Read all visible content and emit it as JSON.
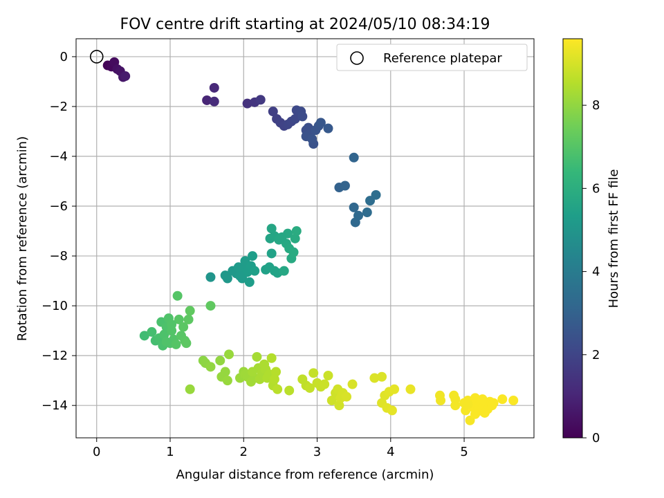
{
  "chart_data": {
    "type": "scatter",
    "title": "FOV centre drift starting at 2024/05/10 08:34:19",
    "xlabel": "Angular distance from reference (arcmin)",
    "ylabel": "Rotation from reference (arcmin)",
    "xlim": [
      -0.28,
      5.95
    ],
    "ylim": [
      -15.3,
      0.72
    ],
    "x_ticks": [
      0,
      1,
      2,
      3,
      4,
      5
    ],
    "y_ticks": [
      0,
      -2,
      -4,
      -6,
      -8,
      -10,
      -12,
      -14
    ],
    "grid": true,
    "legend": {
      "entries": [
        "Reference platepar"
      ],
      "position": "top-right"
    },
    "reference_point": {
      "x": 0,
      "y": 0,
      "label": "Reference platepar"
    },
    "colorbar": {
      "label": "Hours from first FF file",
      "range": [
        0,
        9.6
      ],
      "ticks": [
        0,
        2,
        4,
        6,
        8
      ],
      "colormap": [
        "#440154",
        "#482878",
        "#3e4989",
        "#31688e",
        "#26828e",
        "#1f9e89",
        "#35b779",
        "#6ece58",
        "#b5de2b",
        "#fde725"
      ]
    },
    "series": [
      {
        "points": [
          [
            0.15,
            -0.35,
            0.1
          ],
          [
            0.2,
            -0.4,
            0.2
          ],
          [
            0.24,
            -0.22,
            0.3
          ],
          [
            0.28,
            -0.5,
            0.4
          ],
          [
            0.32,
            -0.58,
            0.5
          ],
          [
            0.36,
            -0.82,
            0.6
          ],
          [
            0.39,
            -0.78,
            0.7
          ],
          [
            1.5,
            -1.75,
            1.0
          ],
          [
            1.6,
            -1.25,
            1.1
          ],
          [
            1.6,
            -1.8,
            1.2
          ],
          [
            2.05,
            -1.88,
            1.4
          ],
          [
            2.15,
            -1.83,
            1.5
          ],
          [
            2.23,
            -1.73,
            1.6
          ],
          [
            2.4,
            -2.2,
            1.8
          ],
          [
            2.45,
            -2.5,
            1.85
          ],
          [
            2.5,
            -2.65,
            1.9
          ],
          [
            2.55,
            -2.78,
            1.95
          ],
          [
            2.6,
            -2.72,
            2.0
          ],
          [
            2.65,
            -2.6,
            2.05
          ],
          [
            2.7,
            -2.5,
            2.1
          ],
          [
            2.72,
            -2.15,
            2.15
          ],
          [
            2.78,
            -2.2,
            2.2
          ],
          [
            2.8,
            -2.4,
            2.25
          ],
          [
            2.85,
            -2.95,
            2.3
          ],
          [
            2.88,
            -2.85,
            2.35
          ],
          [
            2.9,
            -3.1,
            2.4
          ],
          [
            2.95,
            -3.5,
            2.45
          ],
          [
            2.98,
            -2.95,
            2.5
          ],
          [
            3.02,
            -2.78,
            2.55
          ],
          [
            3.05,
            -2.65,
            2.6
          ],
          [
            3.15,
            -2.88,
            2.7
          ],
          [
            2.85,
            -3.2,
            2.45
          ],
          [
            2.93,
            -3.3,
            2.5
          ],
          [
            3.3,
            -5.25,
            3.0
          ],
          [
            3.38,
            -5.18,
            3.05
          ],
          [
            3.5,
            -4.05,
            3.1
          ],
          [
            3.5,
            -6.05,
            3.2
          ],
          [
            3.52,
            -6.65,
            3.25
          ],
          [
            3.56,
            -6.38,
            3.3
          ],
          [
            3.68,
            -6.25,
            3.35
          ],
          [
            3.72,
            -5.78,
            3.4
          ],
          [
            3.8,
            -5.55,
            3.45
          ],
          [
            1.55,
            -8.85,
            5.0
          ],
          [
            1.75,
            -8.78,
            5.1
          ],
          [
            1.78,
            -8.9,
            5.1
          ],
          [
            1.85,
            -8.6,
            5.15
          ],
          [
            1.9,
            -8.7,
            5.15
          ],
          [
            1.93,
            -8.45,
            5.2
          ],
          [
            1.98,
            -8.9,
            5.2
          ],
          [
            2.0,
            -8.55,
            5.25
          ],
          [
            2.02,
            -8.2,
            5.25
          ],
          [
            2.05,
            -8.65,
            5.3
          ],
          [
            2.08,
            -9.05,
            5.3
          ],
          [
            2.1,
            -8.4,
            5.35
          ],
          [
            2.12,
            -8.0,
            5.35
          ],
          [
            2.15,
            -8.6,
            5.4
          ],
          [
            2.3,
            -8.55,
            5.45
          ],
          [
            2.35,
            -8.45,
            5.5
          ],
          [
            2.38,
            -7.9,
            5.5
          ],
          [
            2.42,
            -8.6,
            5.55
          ],
          [
            2.46,
            -8.68,
            5.55
          ],
          [
            2.5,
            -7.3,
            5.6
          ],
          [
            2.36,
            -7.3,
            5.6
          ],
          [
            2.38,
            -6.9,
            5.65
          ],
          [
            2.42,
            -7.2,
            5.65
          ],
          [
            2.48,
            -7.35,
            5.7
          ],
          [
            2.55,
            -8.6,
            5.7
          ],
          [
            2.58,
            -7.5,
            5.75
          ],
          [
            2.6,
            -7.1,
            5.75
          ],
          [
            2.62,
            -7.7,
            5.8
          ],
          [
            2.65,
            -8.1,
            5.8
          ],
          [
            2.68,
            -7.85,
            5.85
          ],
          [
            2.7,
            -7.3,
            5.85
          ],
          [
            2.72,
            -7.0,
            5.9
          ],
          [
            2.52,
            -7.25,
            5.7
          ],
          [
            1.95,
            -8.8,
            5.22
          ],
          [
            0.65,
            -11.2,
            6.6
          ],
          [
            0.75,
            -11.05,
            6.7
          ],
          [
            0.8,
            -11.4,
            6.7
          ],
          [
            0.85,
            -11.3,
            6.75
          ],
          [
            0.88,
            -10.65,
            6.8
          ],
          [
            0.9,
            -11.6,
            6.8
          ],
          [
            0.92,
            -11.15,
            6.85
          ],
          [
            0.95,
            -10.85,
            6.85
          ],
          [
            0.98,
            -10.5,
            6.9
          ],
          [
            1.0,
            -11.5,
            6.9
          ],
          [
            1.02,
            -11.0,
            6.95
          ],
          [
            1.05,
            -11.35,
            6.95
          ],
          [
            1.08,
            -11.55,
            7.0
          ],
          [
            1.1,
            -9.6,
            7.0
          ],
          [
            1.12,
            -10.55,
            7.05
          ],
          [
            1.15,
            -11.2,
            7.05
          ],
          [
            1.18,
            -10.85,
            7.1
          ],
          [
            1.2,
            -11.4,
            7.1
          ],
          [
            1.22,
            -11.5,
            7.15
          ],
          [
            1.25,
            -10.55,
            7.15
          ],
          [
            1.27,
            -10.2,
            7.2
          ],
          [
            1.55,
            -10.0,
            7.2
          ],
          [
            0.95,
            -11.45,
            6.9
          ],
          [
            1.02,
            -10.75,
            6.95
          ],
          [
            1.45,
            -12.2,
            7.9
          ],
          [
            1.48,
            -12.3,
            7.95
          ],
          [
            1.55,
            -12.45,
            8.0
          ],
          [
            1.68,
            -12.2,
            8.0
          ],
          [
            1.7,
            -12.85,
            8.05
          ],
          [
            1.75,
            -12.65,
            8.05
          ],
          [
            1.78,
            -13.0,
            8.1
          ],
          [
            1.8,
            -11.95,
            8.1
          ],
          [
            1.95,
            -12.9,
            8.15
          ],
          [
            2.0,
            -12.65,
            8.15
          ],
          [
            2.02,
            -12.75,
            8.2
          ],
          [
            2.05,
            -12.85,
            8.2
          ],
          [
            2.1,
            -13.05,
            8.25
          ],
          [
            2.15,
            -12.9,
            8.25
          ],
          [
            2.18,
            -12.05,
            8.3
          ],
          [
            2.2,
            -12.5,
            8.3
          ],
          [
            2.22,
            -12.95,
            8.35
          ],
          [
            2.25,
            -12.7,
            8.35
          ],
          [
            2.28,
            -12.35,
            8.4
          ],
          [
            2.3,
            -12.55,
            8.4
          ],
          [
            2.32,
            -12.9,
            8.45
          ],
          [
            2.35,
            -12.75,
            8.45
          ],
          [
            2.38,
            -12.1,
            8.5
          ],
          [
            2.4,
            -13.2,
            8.5
          ],
          [
            2.42,
            -12.95,
            8.55
          ],
          [
            2.44,
            -12.65,
            8.55
          ],
          [
            2.46,
            -13.35,
            8.6
          ],
          [
            2.62,
            -13.4,
            8.6
          ],
          [
            1.27,
            -13.35,
            8.1
          ],
          [
            2.12,
            -12.65,
            8.3
          ],
          [
            2.8,
            -12.95,
            8.7
          ],
          [
            2.85,
            -13.2,
            8.7
          ],
          [
            2.9,
            -13.3,
            8.75
          ],
          [
            2.95,
            -12.7,
            8.75
          ],
          [
            3.0,
            -13.1,
            8.8
          ],
          [
            3.05,
            -13.25,
            8.8
          ],
          [
            3.1,
            -13.15,
            8.85
          ],
          [
            3.15,
            -12.8,
            8.85
          ],
          [
            3.2,
            -13.8,
            8.9
          ],
          [
            3.25,
            -13.5,
            8.9
          ],
          [
            3.28,
            -13.35,
            8.95
          ],
          [
            3.3,
            -14.0,
            8.95
          ],
          [
            3.32,
            -13.7,
            9.0
          ],
          [
            3.35,
            -13.5,
            9.0
          ],
          [
            3.4,
            -13.65,
            9.05
          ],
          [
            3.48,
            -13.15,
            9.05
          ],
          [
            3.78,
            -12.9,
            9.1
          ],
          [
            3.88,
            -12.85,
            9.1
          ],
          [
            3.88,
            -13.9,
            9.15
          ],
          [
            3.92,
            -13.6,
            9.15
          ],
          [
            3.95,
            -14.1,
            9.2
          ],
          [
            3.98,
            -13.45,
            9.2
          ],
          [
            4.02,
            -14.2,
            9.25
          ],
          [
            4.05,
            -13.35,
            9.25
          ],
          [
            4.27,
            -13.35,
            9.3
          ],
          [
            4.67,
            -13.6,
            9.4
          ],
          [
            4.68,
            -13.8,
            9.4
          ],
          [
            4.86,
            -13.6,
            9.45
          ],
          [
            4.88,
            -14.0,
            9.45
          ],
          [
            4.88,
            -13.75,
            9.45
          ],
          [
            5.0,
            -13.9,
            9.5
          ],
          [
            5.02,
            -14.2,
            9.5
          ],
          [
            5.05,
            -13.8,
            9.5
          ],
          [
            5.08,
            -14.6,
            9.5
          ],
          [
            5.1,
            -14.05,
            9.55
          ],
          [
            5.12,
            -13.9,
            9.55
          ],
          [
            5.15,
            -13.7,
            9.55
          ],
          [
            5.18,
            -14.25,
            9.55
          ],
          [
            5.2,
            -14.05,
            9.55
          ],
          [
            5.22,
            -13.85,
            9.55
          ],
          [
            5.25,
            -14.1,
            9.55
          ],
          [
            5.28,
            -14.3,
            9.55
          ],
          [
            5.3,
            -13.95,
            9.55
          ],
          [
            5.32,
            -14.15,
            9.55
          ],
          [
            5.35,
            -13.85,
            9.55
          ],
          [
            5.38,
            -14.0,
            9.55
          ],
          [
            5.4,
            -13.9,
            9.55
          ],
          [
            5.52,
            -13.75,
            9.55
          ],
          [
            5.67,
            -13.8,
            9.55
          ],
          [
            5.15,
            -14.35,
            9.55
          ],
          [
            5.25,
            -13.75,
            9.55
          ],
          [
            5.05,
            -13.95,
            9.5
          ]
        ]
      }
    ]
  }
}
